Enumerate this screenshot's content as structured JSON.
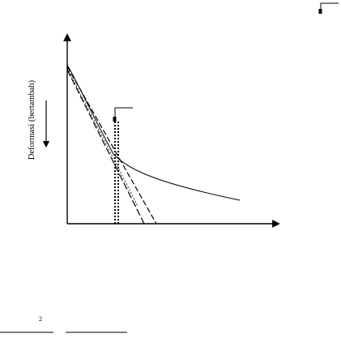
{
  "diagram": {
    "y_axis_label": "Deformasi (bertambah)",
    "footer_superscript": "2",
    "colors": {
      "ink": "#000000",
      "background": "#ffffff"
    }
  }
}
